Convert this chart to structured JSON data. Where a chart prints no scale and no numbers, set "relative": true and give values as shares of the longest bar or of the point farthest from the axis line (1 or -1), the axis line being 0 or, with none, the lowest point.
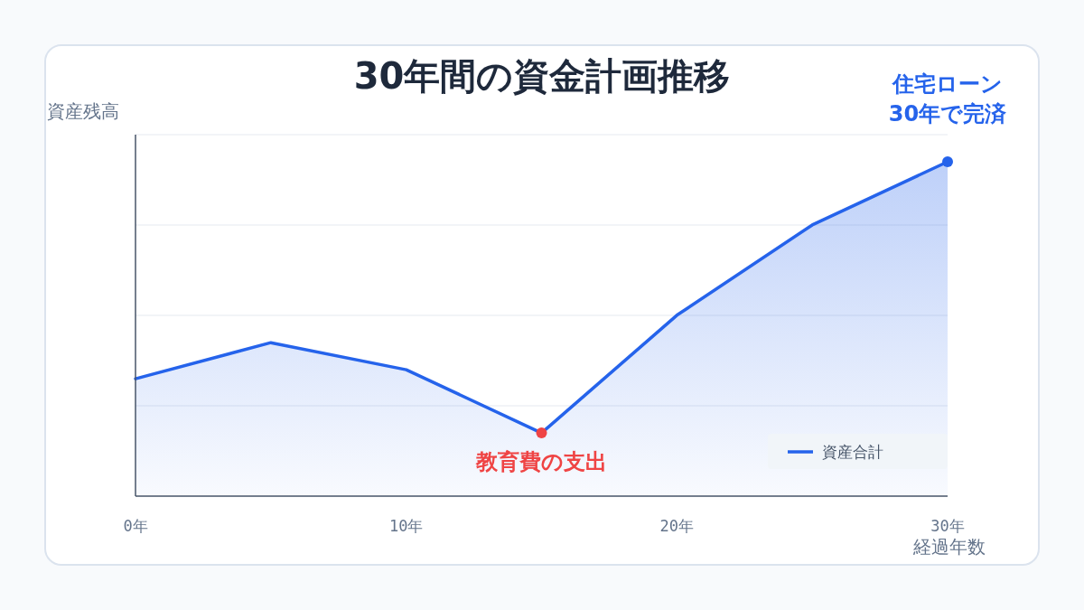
{
  "chart_data": {
    "type": "area",
    "title": "30年間の資金計画推移",
    "xlabel": "経過年数",
    "ylabel": "資産残高",
    "relative": true,
    "x": [
      0,
      5,
      10,
      15,
      20,
      25,
      30
    ],
    "xlim": [
      0,
      30
    ],
    "xticks": [
      {
        "value": 0,
        "label": "0年"
      },
      {
        "value": 10,
        "label": "10年"
      },
      {
        "value": 20,
        "label": "20年"
      },
      {
        "value": 30,
        "label": "30年"
      }
    ],
    "series": [
      {
        "name": "資産合計",
        "color": "#2563eb",
        "values": [
          0.351,
          0.459,
          0.378,
          0.189,
          0.541,
          0.811,
          1
        ]
      }
    ],
    "annotations": [
      {
        "text": "住宅ローン\n30年で完済",
        "x": 30,
        "y": 1
      },
      {
        "text": "教育費の支出",
        "x": 15,
        "y": 0.189
      }
    ],
    "grid": "y",
    "legend": "bottom right"
  }
}
